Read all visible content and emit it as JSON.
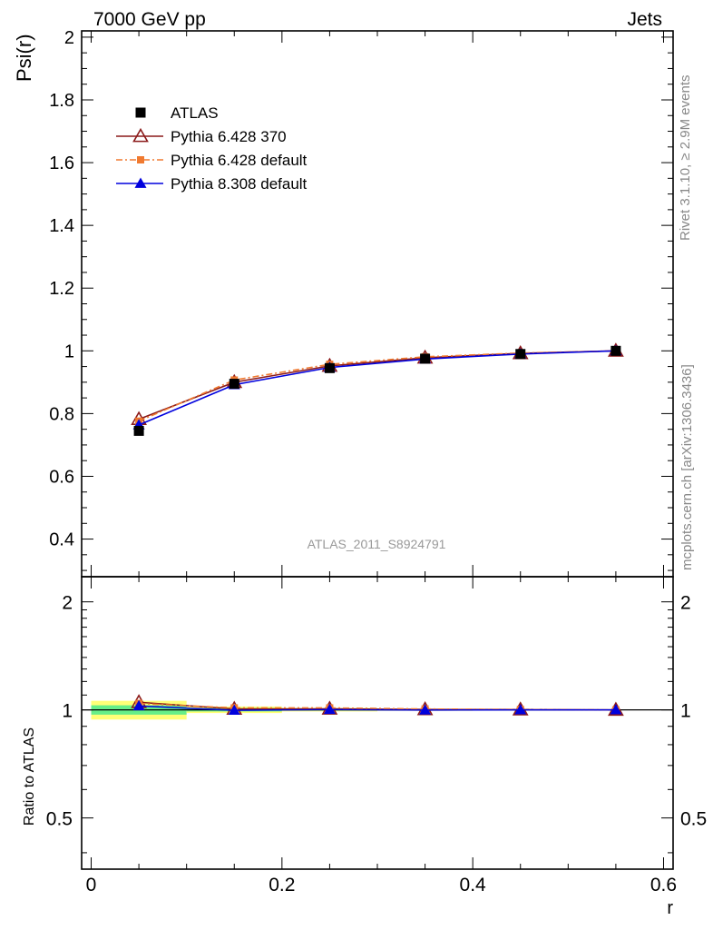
{
  "header": {
    "left": "7000 GeV pp",
    "right": "Jets"
  },
  "side_labels": {
    "rivet": "Rivet 3.1.10, ≥ 2.9M events",
    "mcplots": "mcplots.cern.ch [arXiv:1306.3436]"
  },
  "analysis_label": "ATLAS_2011_S8924791",
  "chart_data": [
    {
      "type": "line",
      "ylabel": "Psi(r)",
      "xlim": [
        -0.01,
        0.61
      ],
      "ylim": [
        0.28,
        2.02
      ],
      "x_ticks": [
        0,
        0.2,
        0.4,
        0.6
      ],
      "y_ticks": [
        0.4,
        0.6,
        0.8,
        1,
        1.2,
        1.4,
        1.6,
        1.8,
        2
      ],
      "y_tick_labels": [
        "0.4",
        "0.6",
        "0.8",
        "1",
        "1.2",
        "1.4",
        "1.6",
        "1.8",
        "2"
      ],
      "legend": {
        "position": "top-left"
      },
      "x": [
        0.05,
        0.15,
        0.25,
        0.35,
        0.45,
        0.55
      ],
      "series": [
        {
          "name": "ATLAS",
          "marker": "square",
          "color": "#000000",
          "values": [
            0.745,
            0.895,
            0.945,
            0.975,
            0.99,
            1.0
          ]
        },
        {
          "name": "Pythia 6.428 370",
          "marker": "triangle-open",
          "color": "#8b1a1a",
          "line": "solid",
          "values": [
            0.782,
            0.9,
            0.952,
            0.978,
            0.992,
            1.0
          ]
        },
        {
          "name": "Pythia 6.428 default",
          "marker": "square-small",
          "color": "#f07a30",
          "line": "dashdot",
          "values": [
            0.776,
            0.907,
            0.957,
            0.981,
            0.993,
            1.0
          ]
        },
        {
          "name": "Pythia 8.308 default",
          "marker": "triangle",
          "color": "#0000dd",
          "line": "solid",
          "values": [
            0.764,
            0.892,
            0.947,
            0.974,
            0.99,
            1.0
          ]
        }
      ]
    },
    {
      "type": "line",
      "xlabel": "r",
      "ylabel": "Ratio to ATLAS",
      "xlim": [
        -0.01,
        0.61
      ],
      "ylim": [
        0.36,
        2.35
      ],
      "log_y": true,
      "x_ticks": [
        0,
        0.2,
        0.4,
        0.6
      ],
      "x_tick_labels": [
        "0",
        "0.2",
        "0.4",
        "0.6"
      ],
      "y_ticks": [
        0.5,
        1,
        2
      ],
      "y_tick_labels": [
        "0.5",
        "1",
        "2"
      ],
      "x": [
        0.05,
        0.15,
        0.25,
        0.35,
        0.45,
        0.55
      ],
      "uncertainty_bands": {
        "bins": [
          [
            0,
            0.1
          ],
          [
            0.1,
            0.2
          ],
          [
            0.2,
            0.3
          ],
          [
            0.3,
            0.4
          ],
          [
            0.4,
            0.5
          ],
          [
            0.5,
            0.6
          ]
        ],
        "stat": [
          [
            0.97,
            1.03
          ],
          [
            0.99,
            1.012
          ],
          [
            0.995,
            1.007
          ],
          [
            0.997,
            1.004
          ],
          [
            0.998,
            1.002
          ],
          [
            0.999,
            1.001
          ]
        ],
        "total": [
          [
            0.94,
            1.06
          ],
          [
            0.98,
            1.022
          ],
          [
            0.99,
            1.013
          ],
          [
            0.994,
            1.006
          ],
          [
            0.997,
            1.003
          ],
          [
            0.998,
            1.002
          ]
        ],
        "stat_color": "#66ee88",
        "total_color": "#ffff77"
      },
      "series": [
        {
          "name": "Pythia 6.428 370",
          "color": "#8b1a1a",
          "values": [
            1.05,
            1.006,
            1.007,
            1.003,
            1.002,
            1.0
          ]
        },
        {
          "name": "Pythia 6.428 default",
          "color": "#f07a30",
          "values": [
            1.042,
            1.013,
            1.013,
            1.006,
            1.003,
            1.0
          ]
        },
        {
          "name": "Pythia 8.308 default",
          "color": "#0000dd",
          "values": [
            1.026,
            0.997,
            1.002,
            0.999,
            1.0,
            1.0
          ]
        }
      ]
    }
  ]
}
